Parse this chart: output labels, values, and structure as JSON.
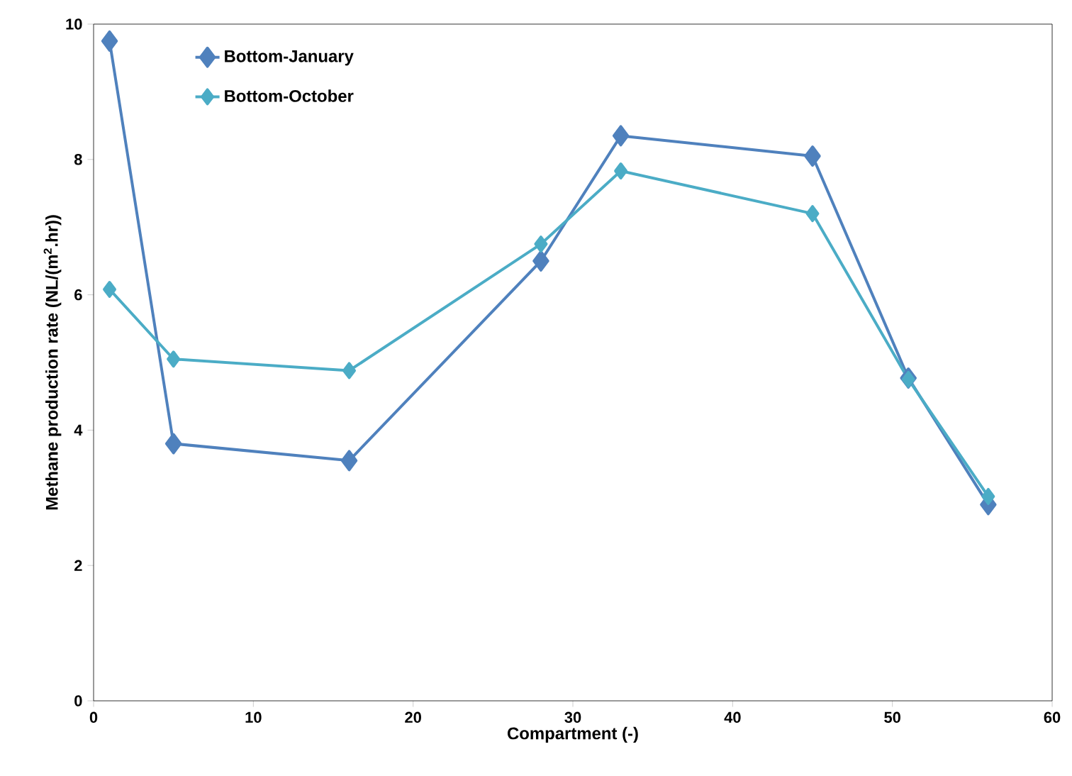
{
  "chart_data": {
    "type": "line",
    "xlabel": "Compartment (-)",
    "ylabel": "Methane production rate (NL/(m$^{2}$.hr))",
    "x": [
      1,
      5,
      16,
      28,
      33,
      45,
      51,
      56
    ],
    "series": [
      {
        "name": "Bottom-January",
        "color": "#4f81bd",
        "values": [
          9.75,
          3.8,
          3.55,
          6.5,
          8.35,
          8.05,
          4.77,
          2.9
        ]
      },
      {
        "name": "Bottom-October",
        "color": "#4bacc6",
        "values": [
          6.08,
          5.05,
          4.88,
          6.75,
          7.83,
          7.2,
          4.75,
          3.02
        ]
      }
    ],
    "xlim": [
      0,
      60
    ],
    "xticks": [
      0,
      10,
      20,
      30,
      40,
      50,
      60
    ],
    "ylim": [
      0,
      10
    ],
    "yticks": [
      0,
      2,
      4,
      6,
      8,
      10
    ],
    "grid": false,
    "legend": "top left",
    "marker": "diamond",
    "line_style": "solid"
  }
}
